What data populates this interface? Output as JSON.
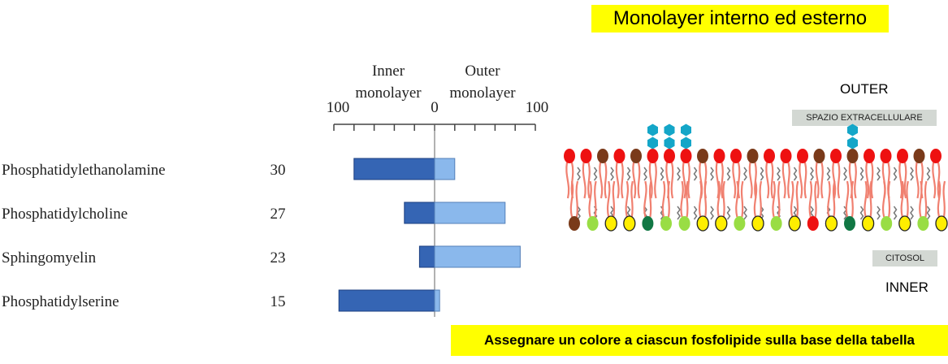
{
  "header": {
    "title": "Monolayer interno ed esterno"
  },
  "footer": {
    "instruction": "Assegnare un colore a ciascun fosfolipide sulla base della tabella"
  },
  "chart_data": {
    "type": "bar",
    "orientation": "horizontal-diverging",
    "axis": {
      "left_label_line1": "Inner",
      "left_label_line2": "monolayer",
      "right_label_line1": "Outer",
      "right_label_line2": "monolayer",
      "left_max_label": "100",
      "zero_label": "0",
      "right_max_label": "100",
      "xlim": [
        -100,
        100
      ]
    },
    "categories": [
      {
        "name": "Phosphatidylethanolamine",
        "total": "30",
        "inner": 80,
        "outer": 20
      },
      {
        "name": "Phosphatidylcholine",
        "total": "27",
        "inner": 30,
        "outer": 70
      },
      {
        "name": "Sphingomyelin",
        "total": "23",
        "inner": 15,
        "outer": 85
      },
      {
        "name": "Phosphatidylserine",
        "total": "15",
        "inner": 95,
        "outer": 5
      }
    ],
    "colors": {
      "inner": "#3565b4",
      "outer": "#8ab8ec"
    }
  },
  "diagram": {
    "outer_label": "OUTER",
    "inner_label": "INNER",
    "extracellular_tag": "SPAZIO EXTRACELLULARE",
    "cytosol_tag": "CITOSOL",
    "outer_heads": [
      "red",
      "red",
      "brown",
      "red",
      "brown",
      "red",
      "red",
      "red",
      "brown",
      "red",
      "red",
      "brown",
      "red",
      "red",
      "red",
      "brown",
      "red",
      "brown",
      "red",
      "red",
      "red",
      "brown",
      "red"
    ],
    "inner_heads": [
      "brown",
      "green",
      "yellow",
      "yellow",
      "darkgreen",
      "green",
      "green",
      "yellow",
      "yellow",
      "green",
      "yellow",
      "green",
      "yellow",
      "red",
      "yellow",
      "darkgreen",
      "yellow",
      "green",
      "yellow",
      "green",
      "yellow"
    ],
    "glyco_positions": [
      5,
      6,
      7,
      17
    ],
    "colors": {
      "red": "#ee1111",
      "brown": "#7a3a1a",
      "green": "#99dd44",
      "darkgreen": "#117744",
      "yellow": "#ffee00",
      "sugar": "#14a6c8",
      "tail": "#f08070"
    }
  }
}
